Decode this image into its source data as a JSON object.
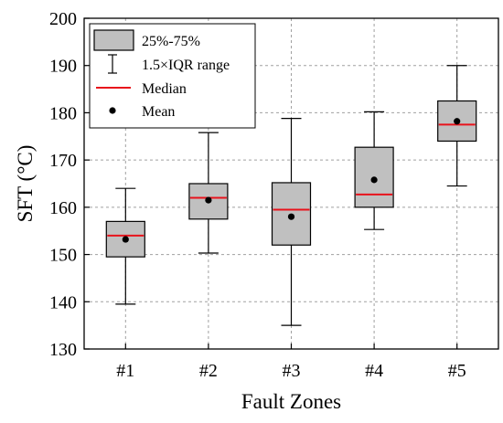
{
  "chart_data": {
    "type": "box",
    "xlabel": "Fault Zones",
    "ylabel": "SFT (°C)",
    "ylim": [
      130,
      200
    ],
    "yticks": [
      130,
      140,
      150,
      160,
      170,
      180,
      190,
      200
    ],
    "categories": [
      "#1",
      "#2",
      "#3",
      "#4",
      "#5"
    ],
    "boxes": [
      {
        "category": "#1",
        "whisker_low": 139.5,
        "q1": 149.5,
        "median": 154.0,
        "q3": 157.0,
        "whisker_high": 164.0,
        "mean": 153.2
      },
      {
        "category": "#2",
        "whisker_low": 150.3,
        "q1": 157.5,
        "median": 162.0,
        "q3": 165.0,
        "whisker_high": 175.8,
        "mean": 161.5
      },
      {
        "category": "#3",
        "whisker_low": 135.0,
        "q1": 152.0,
        "median": 159.5,
        "q3": 165.2,
        "whisker_high": 178.8,
        "mean": 158.0
      },
      {
        "category": "#4",
        "whisker_low": 155.3,
        "q1": 160.0,
        "median": 162.7,
        "q3": 172.7,
        "whisker_high": 180.2,
        "mean": 165.8
      },
      {
        "category": "#5",
        "whisker_low": 164.5,
        "q1": 174.0,
        "median": 177.5,
        "q3": 182.5,
        "whisker_high": 190.0,
        "mean": 178.2
      }
    ],
    "legend": {
      "position": "top-left",
      "items": [
        {
          "label": "25%-75%",
          "symbol": "box"
        },
        {
          "label": "1.5×IQR range",
          "symbol": "whisker"
        },
        {
          "label": "Median",
          "symbol": "line"
        },
        {
          "label": "Mean",
          "symbol": "dot"
        }
      ]
    },
    "grid": true,
    "colors": {
      "box_fill": "#c0c0c0",
      "median": "#e8121b",
      "mean": "#000000",
      "grid": "#a0a0a0"
    }
  }
}
